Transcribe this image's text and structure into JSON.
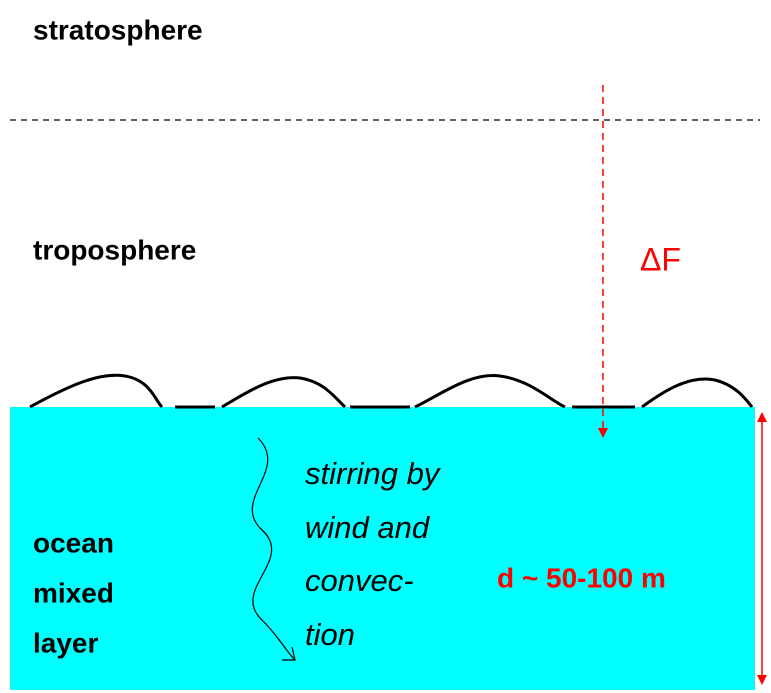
{
  "layers": {
    "upper": "stratosphere",
    "lower": "troposphere",
    "ocean": [
      "ocean",
      "mixed",
      "layer"
    ]
  },
  "forcing": "ΔF",
  "mixing": [
    "stirring by",
    "wind and",
    "convec-",
    "tion"
  ],
  "depth": "d ~ 50-100 m"
}
